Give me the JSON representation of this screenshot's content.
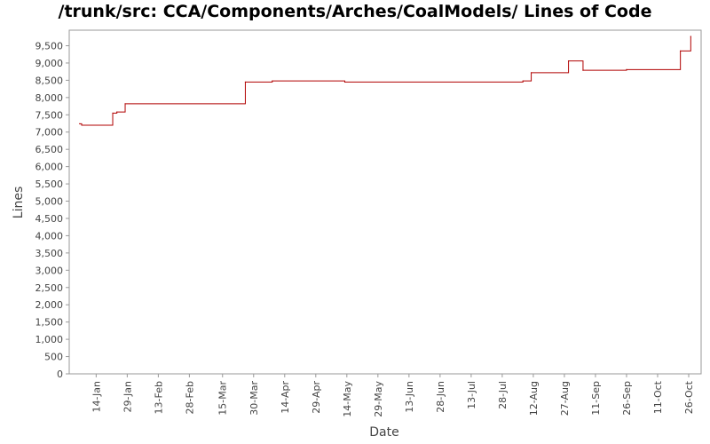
{
  "chart_data": {
    "type": "line",
    "title": "/trunk/src: CCA/Components/Arches/CoalModels/ Lines of Code",
    "xlabel": "Date",
    "ylabel": "Lines",
    "ylim": [
      0,
      9950
    ],
    "yticks": [
      0,
      500,
      1000,
      1500,
      2000,
      2500,
      3000,
      3500,
      4000,
      4500,
      5000,
      5500,
      6000,
      6500,
      7000,
      7500,
      8000,
      8500,
      9000,
      9500
    ],
    "ytick_labels": [
      "0",
      "500",
      "1,000",
      "1,500",
      "2,000",
      "2,500",
      "3,000",
      "3,500",
      "4,000",
      "4,500",
      "5,000",
      "5,500",
      "6,000",
      "6,500",
      "7,000",
      "7,500",
      "8,000",
      "8,500",
      "9,000",
      "9,500"
    ],
    "xlim": [
      "2008-01-01",
      "2008-11-01"
    ],
    "xticks": [
      "2008-01-14",
      "2008-01-29",
      "2008-02-13",
      "2008-02-28",
      "2008-03-15",
      "2008-03-30",
      "2008-04-14",
      "2008-04-29",
      "2008-05-14",
      "2008-05-29",
      "2008-06-13",
      "2008-06-28",
      "2008-07-13",
      "2008-07-28",
      "2008-08-12",
      "2008-08-27",
      "2008-09-11",
      "2008-09-26",
      "2008-10-11",
      "2008-10-26"
    ],
    "xtick_labels": [
      "14-Jan",
      "29-Jan",
      "13-Feb",
      "28-Feb",
      "15-Mar",
      "30-Mar",
      "14-Apr",
      "29-Apr",
      "14-May",
      "29-May",
      "13-Jun",
      "28-Jun",
      "13-Jul",
      "28-Jul",
      "12-Aug",
      "27-Aug",
      "11-Sep",
      "26-Sep",
      "11-Oct",
      "26-Oct"
    ],
    "grid": false,
    "series": [
      {
        "color": "#b00000",
        "step": true,
        "points": [
          {
            "x": "2008-01-06",
            "y": 7240
          },
          {
            "x": "2008-01-07",
            "y": 7200
          },
          {
            "x": "2008-01-22",
            "y": 7550
          },
          {
            "x": "2008-01-24",
            "y": 7580
          },
          {
            "x": "2008-01-28",
            "y": 7820
          },
          {
            "x": "2008-03-26",
            "y": 8450
          },
          {
            "x": "2008-04-08",
            "y": 8480
          },
          {
            "x": "2008-05-13",
            "y": 8450
          },
          {
            "x": "2008-08-07",
            "y": 8480
          },
          {
            "x": "2008-08-11",
            "y": 8720
          },
          {
            "x": "2008-08-29",
            "y": 9060
          },
          {
            "x": "2008-09-05",
            "y": 8790
          },
          {
            "x": "2008-09-26",
            "y": 8810
          },
          {
            "x": "2008-10-22",
            "y": 9350
          },
          {
            "x": "2008-10-27",
            "y": 9770
          }
        ]
      }
    ]
  }
}
